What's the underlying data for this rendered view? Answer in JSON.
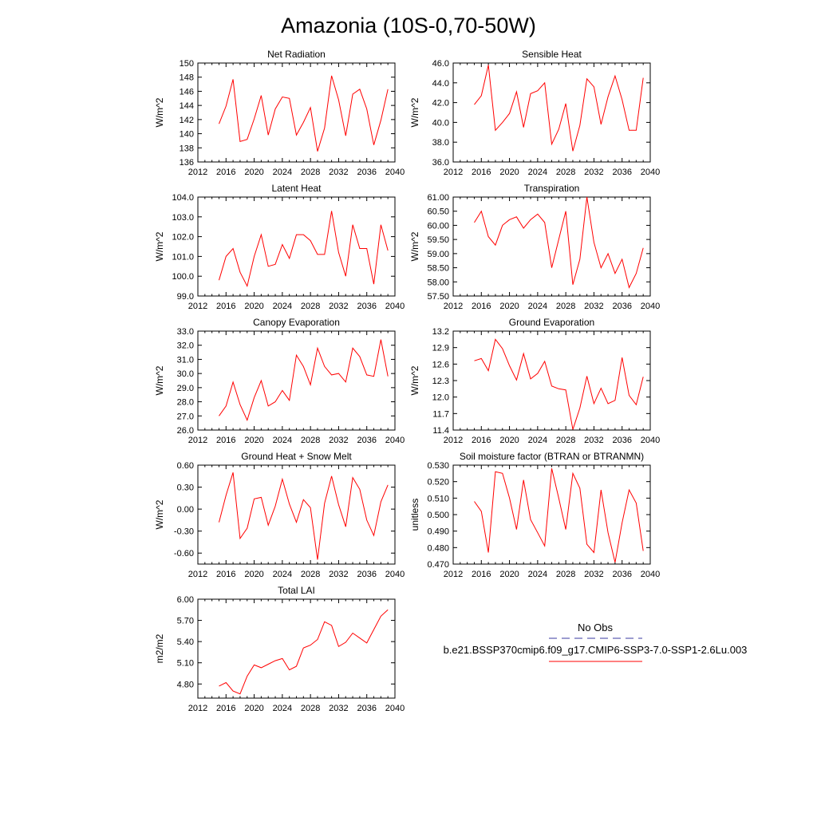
{
  "page_title": "Amazonia (10S-0,70-50W)",
  "colors": {
    "series": "#ff0000",
    "obs": "#3a3aa0",
    "axis": "#000000"
  },
  "legend": {
    "obs_label": "No Obs",
    "series_label": "b.e21.BSSP370cmip6.f09_g17.CMIP6-SSP3-7.0-SSP1-2.6Lu.003"
  },
  "chart_data": [
    {
      "type": "line",
      "title": "Net Radiation",
      "ylabel": "W/m^2",
      "xlim": [
        2012,
        2040
      ],
      "ylim": [
        136,
        150
      ],
      "x_ticks": [
        2012,
        2016,
        2020,
        2024,
        2028,
        2032,
        2036,
        2040
      ],
      "y_ticks": [
        136,
        138,
        140,
        142,
        144,
        146,
        148,
        150
      ],
      "y_tick_labels": [
        "136",
        "138",
        "140",
        "142",
        "144",
        "146",
        "148",
        "150"
      ],
      "x": [
        2015,
        2016,
        2017,
        2018,
        2019,
        2020,
        2021,
        2022,
        2023,
        2024,
        2025,
        2026,
        2027,
        2028,
        2029,
        2030,
        2031,
        2032,
        2033,
        2034,
        2035,
        2036,
        2037,
        2038,
        2039
      ],
      "values": [
        141.4,
        143.9,
        147.7,
        138.9,
        139.2,
        142.1,
        145.4,
        139.8,
        143.5,
        145.2,
        145.0,
        139.8,
        141.6,
        143.7,
        137.5,
        140.8,
        148.2,
        144.8,
        139.7,
        145.6,
        146.3,
        143.5,
        138.4,
        141.9,
        146.3
      ]
    },
    {
      "type": "line",
      "title": "Sensible Heat",
      "ylabel": "W/m^2",
      "xlim": [
        2012,
        2040
      ],
      "ylim": [
        36,
        46
      ],
      "x_ticks": [
        2012,
        2016,
        2020,
        2024,
        2028,
        2032,
        2036,
        2040
      ],
      "y_ticks": [
        36,
        38,
        40,
        42,
        44,
        46
      ],
      "y_tick_labels": [
        "36.0",
        "38.0",
        "40.0",
        "42.0",
        "44.0",
        "46.0"
      ],
      "x": [
        2015,
        2016,
        2017,
        2018,
        2019,
        2020,
        2021,
        2022,
        2023,
        2024,
        2025,
        2026,
        2027,
        2028,
        2029,
        2030,
        2031,
        2032,
        2033,
        2034,
        2035,
        2036,
        2037,
        2038,
        2039
      ],
      "values": [
        41.8,
        42.7,
        45.8,
        39.2,
        40.0,
        40.9,
        43.1,
        39.5,
        42.9,
        43.2,
        44.0,
        37.8,
        39.3,
        41.9,
        37.1,
        39.7,
        44.4,
        43.6,
        39.8,
        42.6,
        44.7,
        42.3,
        39.2,
        39.2,
        44.5
      ]
    },
    {
      "type": "line",
      "title": "Latent Heat",
      "ylabel": "W/m^2",
      "xlim": [
        2012,
        2040
      ],
      "ylim": [
        99,
        104
      ],
      "x_ticks": [
        2012,
        2016,
        2020,
        2024,
        2028,
        2032,
        2036,
        2040
      ],
      "y_ticks": [
        99,
        100,
        101,
        102,
        103,
        104
      ],
      "y_tick_labels": [
        "99.0",
        "100.0",
        "101.0",
        "102.0",
        "103.0",
        "104.0"
      ],
      "x": [
        2015,
        2016,
        2017,
        2018,
        2019,
        2020,
        2021,
        2022,
        2023,
        2024,
        2025,
        2026,
        2027,
        2028,
        2029,
        2030,
        2031,
        2032,
        2033,
        2034,
        2035,
        2036,
        2037,
        2038,
        2039
      ],
      "values": [
        99.8,
        101.0,
        101.4,
        100.2,
        99.5,
        101.0,
        102.1,
        100.5,
        100.6,
        101.6,
        100.9,
        102.1,
        102.1,
        101.8,
        101.1,
        101.1,
        103.3,
        101.2,
        100.0,
        102.6,
        101.4,
        101.4,
        99.6,
        102.6,
        101.3
      ]
    },
    {
      "type": "line",
      "title": "Transpiration",
      "ylabel": "W/m^2",
      "xlim": [
        2012,
        2040
      ],
      "ylim": [
        57.5,
        61
      ],
      "x_ticks": [
        2012,
        2016,
        2020,
        2024,
        2028,
        2032,
        2036,
        2040
      ],
      "y_ticks": [
        57.5,
        58,
        58.5,
        59,
        59.5,
        60,
        60.5,
        61
      ],
      "y_tick_labels": [
        "57.50",
        "58.00",
        "58.50",
        "59.00",
        "59.50",
        "60.00",
        "60.50",
        "61.00"
      ],
      "x": [
        2015,
        2016,
        2017,
        2018,
        2019,
        2020,
        2021,
        2022,
        2023,
        2024,
        2025,
        2026,
        2027,
        2028,
        2029,
        2030,
        2031,
        2032,
        2033,
        2034,
        2035,
        2036,
        2037,
        2038,
        2039
      ],
      "values": [
        60.1,
        60.5,
        59.6,
        59.3,
        60.0,
        60.2,
        60.3,
        59.9,
        60.2,
        60.4,
        60.1,
        58.5,
        59.5,
        60.5,
        57.9,
        58.8,
        61.0,
        59.4,
        58.5,
        59.0,
        58.3,
        58.8,
        57.8,
        58.3,
        59.2
      ]
    },
    {
      "type": "line",
      "title": "Canopy Evaporation",
      "ylabel": "W/m^2",
      "xlim": [
        2012,
        2040
      ],
      "ylim": [
        26,
        33
      ],
      "x_ticks": [
        2012,
        2016,
        2020,
        2024,
        2028,
        2032,
        2036,
        2040
      ],
      "y_ticks": [
        26,
        27,
        28,
        29,
        30,
        31,
        32,
        33
      ],
      "y_tick_labels": [
        "26.0",
        "27.0",
        "28.0",
        "29.0",
        "30.0",
        "31.0",
        "32.0",
        "33.0"
      ],
      "x": [
        2015,
        2016,
        2017,
        2018,
        2019,
        2020,
        2021,
        2022,
        2023,
        2024,
        2025,
        2026,
        2027,
        2028,
        2029,
        2030,
        2031,
        2032,
        2033,
        2034,
        2035,
        2036,
        2037,
        2038,
        2039
      ],
      "values": [
        27.0,
        27.7,
        29.4,
        27.8,
        26.7,
        28.3,
        29.5,
        27.7,
        28.0,
        28.8,
        28.1,
        31.3,
        30.5,
        29.2,
        31.8,
        30.5,
        29.9,
        30.0,
        29.4,
        31.8,
        31.2,
        29.9,
        29.8,
        32.4,
        29.8
      ]
    },
    {
      "type": "line",
      "title": "Ground Evaporation",
      "ylabel": "W/m^2",
      "xlim": [
        2012,
        2040
      ],
      "ylim": [
        11.4,
        13.2
      ],
      "x_ticks": [
        2012,
        2016,
        2020,
        2024,
        2028,
        2032,
        2036,
        2040
      ],
      "y_ticks": [
        11.4,
        11.7,
        12.0,
        12.3,
        12.6,
        12.9,
        13.2
      ],
      "y_tick_labels": [
        "11.4",
        "11.7",
        "12.0",
        "12.3",
        "12.6",
        "12.9",
        "13.2"
      ],
      "x": [
        2015,
        2016,
        2017,
        2018,
        2019,
        2020,
        2021,
        2022,
        2023,
        2024,
        2025,
        2026,
        2027,
        2028,
        2029,
        2030,
        2031,
        2032,
        2033,
        2034,
        2035,
        2036,
        2037,
        2038,
        2039
      ],
      "values": [
        12.66,
        12.7,
        12.48,
        13.05,
        12.88,
        12.57,
        12.31,
        12.79,
        12.33,
        12.43,
        12.65,
        12.2,
        12.15,
        12.13,
        11.41,
        11.8,
        12.38,
        11.88,
        12.16,
        11.88,
        11.94,
        12.72,
        12.03,
        11.86,
        12.37
      ]
    },
    {
      "type": "line",
      "title": "Ground Heat + Snow Melt",
      "ylabel": "W/m^2",
      "xlim": [
        2012,
        2040
      ],
      "ylim": [
        -0.75,
        0.6
      ],
      "x_ticks": [
        2012,
        2016,
        2020,
        2024,
        2028,
        2032,
        2036,
        2040
      ],
      "y_ticks": [
        -0.6,
        -0.3,
        0.0,
        0.3,
        0.6
      ],
      "y_tick_labels": [
        "-0.60",
        "-0.30",
        "0.00",
        "0.30",
        "0.60"
      ],
      "x": [
        2015,
        2016,
        2017,
        2018,
        2019,
        2020,
        2021,
        2022,
        2023,
        2024,
        2025,
        2026,
        2027,
        2028,
        2029,
        2030,
        2031,
        2032,
        2033,
        2034,
        2035,
        2036,
        2037,
        2038,
        2039
      ],
      "values": [
        -0.18,
        0.19,
        0.5,
        -0.4,
        -0.26,
        0.14,
        0.16,
        -0.22,
        0.04,
        0.41,
        0.07,
        -0.18,
        0.13,
        0.02,
        -0.69,
        0.08,
        0.45,
        0.06,
        -0.24,
        0.43,
        0.27,
        -0.15,
        -0.36,
        0.1,
        0.33
      ]
    },
    {
      "type": "line",
      "title": "Soil moisture factor (BTRAN or BTRANMN)",
      "ylabel": "unitless",
      "xlim": [
        2012,
        2040
      ],
      "ylim": [
        0.47,
        0.53
      ],
      "x_ticks": [
        2012,
        2016,
        2020,
        2024,
        2028,
        2032,
        2036,
        2040
      ],
      "y_ticks": [
        0.47,
        0.48,
        0.49,
        0.5,
        0.51,
        0.52,
        0.53
      ],
      "y_tick_labels": [
        "0.470",
        "0.480",
        "0.490",
        "0.500",
        "0.510",
        "0.520",
        "0.530"
      ],
      "x": [
        2015,
        2016,
        2017,
        2018,
        2019,
        2020,
        2021,
        2022,
        2023,
        2024,
        2025,
        2026,
        2027,
        2028,
        2029,
        2030,
        2031,
        2032,
        2033,
        2034,
        2035,
        2036,
        2037,
        2038,
        2039
      ],
      "values": [
        0.508,
        0.502,
        0.477,
        0.526,
        0.525,
        0.51,
        0.491,
        0.521,
        0.497,
        0.489,
        0.481,
        0.528,
        0.51,
        0.491,
        0.525,
        0.516,
        0.482,
        0.477,
        0.515,
        0.489,
        0.471,
        0.495,
        0.515,
        0.507,
        0.478
      ]
    },
    {
      "type": "line",
      "title": "Total LAI",
      "ylabel": "m2/m2",
      "xlim": [
        2012,
        2040
      ],
      "ylim": [
        4.6,
        6.0
      ],
      "x_ticks": [
        2012,
        2016,
        2020,
        2024,
        2028,
        2032,
        2036,
        2040
      ],
      "y_ticks": [
        4.8,
        5.1,
        5.4,
        5.7,
        6.0
      ],
      "y_tick_labels": [
        "4.80",
        "5.10",
        "5.40",
        "5.70",
        "6.00"
      ],
      "x": [
        2015,
        2016,
        2017,
        2018,
        2019,
        2020,
        2021,
        2022,
        2023,
        2024,
        2025,
        2026,
        2027,
        2028,
        2029,
        2030,
        2031,
        2032,
        2033,
        2034,
        2035,
        2036,
        2037,
        2038,
        2039
      ],
      "values": [
        4.77,
        4.82,
        4.7,
        4.66,
        4.91,
        5.07,
        5.03,
        5.08,
        5.13,
        5.16,
        5.0,
        5.05,
        5.31,
        5.35,
        5.43,
        5.68,
        5.63,
        5.33,
        5.39,
        5.52,
        5.45,
        5.38,
        5.57,
        5.76,
        5.85
      ]
    }
  ]
}
